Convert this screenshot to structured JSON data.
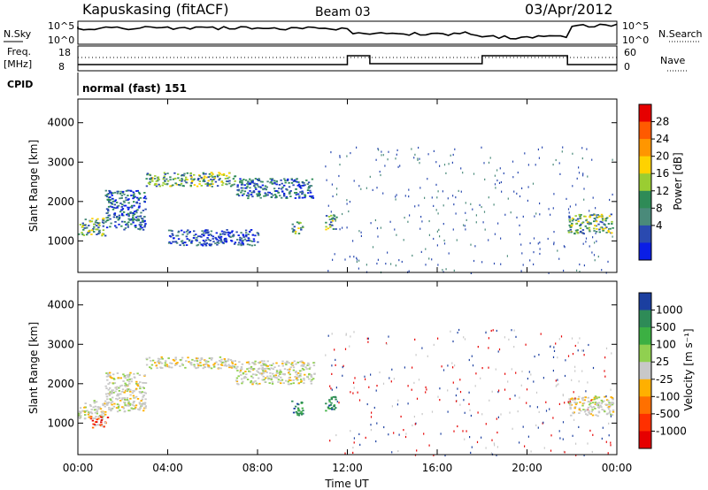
{
  "header": {
    "station": "Kapuskasing (fitACF)",
    "beam": "Beam 03",
    "date": "03/Apr/2012"
  },
  "top_panels": {
    "nsky_label": "N.Sky",
    "nsky_ticks": [
      "10^5",
      "10^0"
    ],
    "nsearch_label": "N.Search",
    "freq_label": "Freq.",
    "freq_unit": "[MHz]",
    "freq_ticks": [
      "18",
      "8"
    ],
    "nave_ticks": [
      "60",
      "0"
    ],
    "nave_label": "Nave",
    "cpid_label": "CPID",
    "cpid_value": "normal (fast) 151"
  },
  "power_colorbar": {
    "label": "Power [dB]",
    "ticks": [
      "28",
      "24",
      "20",
      "16",
      "12",
      "8",
      "4"
    ],
    "colors": [
      "#e60000",
      "#ff5a00",
      "#ff9600",
      "#ffd200",
      "#9acd32",
      "#2e8b57",
      "#4a8a7a",
      "#2a4ab0",
      "#0a1ee6"
    ]
  },
  "velocity_colorbar": {
    "label": "Velocity [m s⁻¹]",
    "ticks": [
      "1000",
      "500",
      "100",
      "25",
      "-25",
      "-100",
      "-500",
      "-1000"
    ],
    "colors": [
      "#1b3fa0",
      "#2e8b57",
      "#3cb043",
      "#90d050",
      "#c8c8c8",
      "#ffb000",
      "#ff7000",
      "#ff3000",
      "#e60000"
    ]
  },
  "chart_data": [
    {
      "type": "heatmap",
      "panel": "power",
      "ylabel": "Slant Range [km]",
      "yticks": [
        1000,
        2000,
        3000,
        4000
      ],
      "ylim": [
        200,
        4600
      ],
      "xlim": [
        0,
        24
      ],
      "regions": [
        {
          "x": [
            0.0,
            1.2
          ],
          "y": [
            1150,
            1600
          ],
          "level": "high"
        },
        {
          "x": [
            1.2,
            3.0
          ],
          "y": [
            1300,
            2300
          ],
          "level": "mid"
        },
        {
          "x": [
            3.0,
            7.0
          ],
          "y": [
            2400,
            2750
          ],
          "level": "high"
        },
        {
          "x": [
            7.0,
            10.5
          ],
          "y": [
            2100,
            2600
          ],
          "level": "mid"
        },
        {
          "x": [
            4.0,
            8.0
          ],
          "y": [
            900,
            1300
          ],
          "level": "low"
        },
        {
          "x": [
            9.5,
            10.0
          ],
          "y": [
            1200,
            1500
          ],
          "level": "high"
        },
        {
          "x": [
            11.0,
            11.5
          ],
          "y": [
            1300,
            1700
          ],
          "level": "high"
        },
        {
          "x": [
            21.8,
            23.8
          ],
          "y": [
            1200,
            1700
          ],
          "level": "high"
        }
      ]
    },
    {
      "type": "heatmap",
      "panel": "velocity",
      "ylabel": "Slant Range [km]",
      "xlabel": "Time UT",
      "yticks": [
        1000,
        2000,
        3000,
        4000
      ],
      "ylim": [
        200,
        4600
      ],
      "xlim": [
        0,
        24
      ],
      "xticks": [
        "00:00",
        "04:00",
        "08:00",
        "12:00",
        "16:00",
        "20:00",
        "00:00"
      ],
      "regions": [
        {
          "x": [
            0.0,
            1.2
          ],
          "y": [
            1100,
            1600
          ],
          "level": "zero"
        },
        {
          "x": [
            0.5,
            1.3
          ],
          "y": [
            900,
            1200
          ],
          "level": "negative"
        },
        {
          "x": [
            1.2,
            3.0
          ],
          "y": [
            1300,
            2300
          ],
          "level": "zero"
        },
        {
          "x": [
            3.0,
            7.0
          ],
          "y": [
            2400,
            2700
          ],
          "level": "zero"
        },
        {
          "x": [
            7.0,
            10.5
          ],
          "y": [
            2000,
            2600
          ],
          "level": "zero"
        },
        {
          "x": [
            9.5,
            10.0
          ],
          "y": [
            1200,
            1600
          ],
          "level": "positive"
        },
        {
          "x": [
            11.0,
            11.5
          ],
          "y": [
            1300,
            1700
          ],
          "level": "positive"
        },
        {
          "x": [
            21.8,
            23.8
          ],
          "y": [
            1200,
            1700
          ],
          "level": "zero"
        }
      ]
    }
  ]
}
